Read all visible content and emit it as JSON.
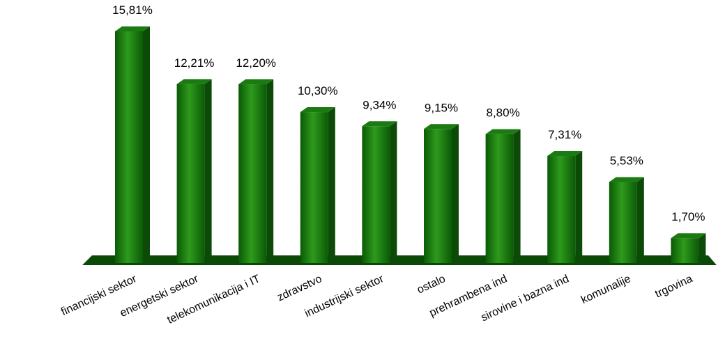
{
  "chart_data": {
    "type": "bar",
    "title": "",
    "xlabel": "",
    "ylabel": "",
    "ylim": [
      0,
      16
    ],
    "grid": false,
    "legend": "none",
    "categories": [
      "financijski sektor",
      "energetski sektor",
      "telekomunikacija i IT",
      "zdravstvo",
      "industrijski sektor",
      "ostalo",
      "prehrambena ind",
      "sirovine i bazna ind",
      "komunalije",
      "trgovina"
    ],
    "values": [
      15.81,
      12.21,
      12.2,
      10.3,
      9.34,
      9.15,
      8.8,
      7.31,
      5.53,
      1.7
    ],
    "value_labels": [
      "15,81%",
      "12,21%",
      "12,20%",
      "10,30%",
      "9,34%",
      "9,15%",
      "8,80%",
      "7,31%",
      "5,53%",
      "1,70%"
    ],
    "colors": {
      "bar_front_light": "#2e9a1c",
      "bar_front_dark": "#0a5a06",
      "bar_top": "#1c7a12",
      "bar_side": "#0c4a08",
      "floor": "#0b4a06"
    }
  }
}
